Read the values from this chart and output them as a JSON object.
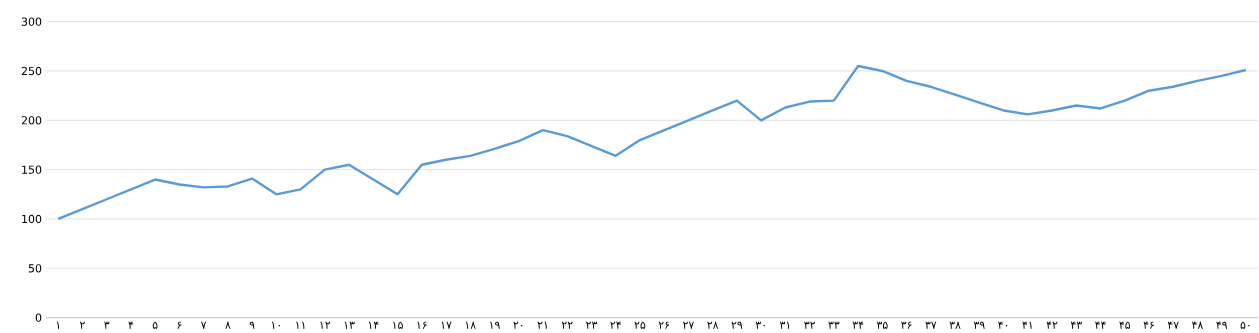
{
  "chart_data": {
    "type": "line",
    "categories": [
      "۱",
      "۲",
      "۳",
      "۴",
      "۵",
      "۶",
      "۷",
      "۸",
      "۹",
      "۱۰",
      "۱۱",
      "۱۲",
      "۱۳",
      "۱۴",
      "۱۵",
      "۱۶",
      "۱۷",
      "۱۸",
      "۱۹",
      "۲۰",
      "۲۱",
      "۲۲",
      "۲۳",
      "۲۴",
      "۲۵",
      "۲۶",
      "۲۷",
      "۲۸",
      "۲۹",
      "۳۰",
      "۳۱",
      "۳۲",
      "۳۳",
      "۳۴",
      "۳۵",
      "۳۶",
      "۳۷",
      "۳۸",
      "۳۹",
      "۴۰",
      "۴۱",
      "۴۲",
      "۴۳",
      "۴۴",
      "۴۵",
      "۴۶",
      "۴۷",
      "۴۸",
      "۴۹",
      "۵۰"
    ],
    "values": [
      100,
      110,
      120,
      130,
      140,
      135,
      132,
      133,
      141,
      125,
      130,
      150,
      155,
      140,
      125,
      155,
      160,
      164,
      171,
      179,
      190,
      184,
      174,
      164,
      180,
      190,
      200,
      210,
      220,
      200,
      213,
      219,
      220,
      255,
      250,
      240,
      234,
      226,
      218,
      210,
      206,
      210,
      215,
      212,
      220,
      230,
      234,
      240,
      245,
      251
    ],
    "color": "#5b9bd5",
    "ylim": [
      0,
      300
    ],
    "yticks": [
      0,
      50,
      100,
      150,
      200,
      250,
      300
    ],
    "grid": "y",
    "marker": "none",
    "line_style": "solid"
  }
}
